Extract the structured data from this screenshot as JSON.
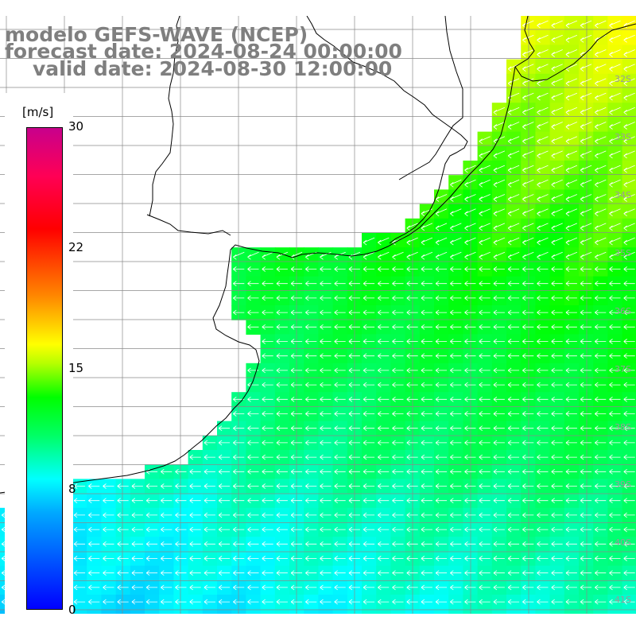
{
  "title": {
    "line1": "modelo GEFS-WAVE (NCEP)",
    "line2": "forecast date: 2024-08-24 00:00:00",
    "line3": "valid date: 2024-08-30 12:00:00"
  },
  "colorbar": {
    "unit": "[m/s]",
    "min": 0,
    "max": 30,
    "ticks": [
      "30",
      "22",
      "15",
      "8",
      "0"
    ],
    "colors": [
      "#0000ff",
      "#00a8ff",
      "#00ffff",
      "#00ff66",
      "#00ff00",
      "#b5ff00",
      "#ffff00",
      "#ff8800",
      "#ff0000",
      "#c8008c"
    ]
  },
  "map": {
    "variable": "wind speed and direction",
    "prevailing_wind": "from east (arrows pointing west)",
    "lat_labels": [
      "32S",
      "33S",
      "34S",
      "35S",
      "36S",
      "37S",
      "38S",
      "39S",
      "40S",
      "41S"
    ],
    "speed_regions": {
      "north_east_coast": "12-15 m/s",
      "central_plata_region": "10-12 m/s",
      "southern_band": "7-9 m/s"
    }
  }
}
